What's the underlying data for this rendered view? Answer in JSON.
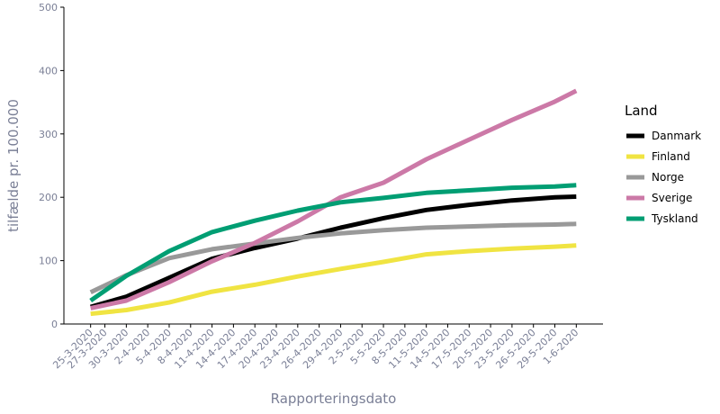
{
  "chart_data": {
    "type": "line",
    "xlabel": "Rapporteringsdato",
    "ylabel": "tilfælde pr. 100.000",
    "ylim": [
      0,
      500
    ],
    "yticks": [
      0,
      100,
      200,
      300,
      400,
      500
    ],
    "xlim": [
      "2020-03-25",
      "2020-06-01"
    ],
    "xticks": [
      "25-3-2020",
      "27-3-2020",
      "30-3-2020",
      "2-4-2020",
      "5-4-2020",
      "8-4-2020",
      "11-4-2020",
      "14-4-2020",
      "17-4-2020",
      "20-4-2020",
      "23-4-2020",
      "26-4-2020",
      "29-4-2020",
      "2-5-2020",
      "5-5-2020",
      "8-5-2020",
      "11-5-2020",
      "14-5-2020",
      "17-5-2020",
      "20-5-2020",
      "23-5-2020",
      "26-5-2020",
      "29-5-2020",
      "1-6-2020"
    ],
    "grid": false,
    "legend": {
      "title": "Land",
      "position": "right"
    },
    "series": [
      {
        "name": "Danmark",
        "color": "#000000",
        "x": [
          "2020-03-25",
          "2020-03-30",
          "2020-04-05",
          "2020-04-11",
          "2020-04-17",
          "2020-04-23",
          "2020-04-29",
          "2020-05-05",
          "2020-05-11",
          "2020-05-17",
          "2020-05-23",
          "2020-05-29",
          "2020-06-01"
        ],
        "y": [
          27,
          43,
          73,
          103,
          120,
          135,
          152,
          167,
          180,
          188,
          195,
          200,
          201
        ]
      },
      {
        "name": "Finland",
        "color": "#f0e442",
        "x": [
          "2020-03-25",
          "2020-03-30",
          "2020-04-05",
          "2020-04-11",
          "2020-04-17",
          "2020-04-23",
          "2020-04-29",
          "2020-05-05",
          "2020-05-11",
          "2020-05-17",
          "2020-05-23",
          "2020-05-29",
          "2020-06-01"
        ],
        "y": [
          16,
          22,
          34,
          51,
          62,
          75,
          87,
          98,
          110,
          115,
          119,
          122,
          124
        ]
      },
      {
        "name": "Norge",
        "color": "#999999",
        "x": [
          "2020-03-25",
          "2020-03-30",
          "2020-04-05",
          "2020-04-11",
          "2020-04-17",
          "2020-04-23",
          "2020-04-29",
          "2020-05-05",
          "2020-05-11",
          "2020-05-17",
          "2020-05-23",
          "2020-05-29",
          "2020-06-01"
        ],
        "y": [
          50,
          77,
          104,
          118,
          127,
          136,
          143,
          148,
          152,
          154,
          156,
          157,
          158
        ]
      },
      {
        "name": "Sverige",
        "color": "#cc79a7",
        "x": [
          "2020-03-25",
          "2020-03-30",
          "2020-04-05",
          "2020-04-11",
          "2020-04-17",
          "2020-04-23",
          "2020-04-29",
          "2020-05-05",
          "2020-05-11",
          "2020-05-17",
          "2020-05-23",
          "2020-05-29",
          "2020-06-01"
        ],
        "y": [
          25,
          37,
          66,
          99,
          128,
          162,
          200,
          223,
          260,
          291,
          322,
          351,
          368
        ]
      },
      {
        "name": "Tyskland",
        "color": "#009e73",
        "x": [
          "2020-03-25",
          "2020-03-30",
          "2020-04-05",
          "2020-04-11",
          "2020-04-17",
          "2020-04-23",
          "2020-04-29",
          "2020-05-05",
          "2020-05-11",
          "2020-05-17",
          "2020-05-23",
          "2020-05-29",
          "2020-06-01"
        ],
        "y": [
          37,
          76,
          115,
          145,
          163,
          179,
          192,
          199,
          207,
          211,
          215,
          217,
          219
        ]
      }
    ]
  }
}
